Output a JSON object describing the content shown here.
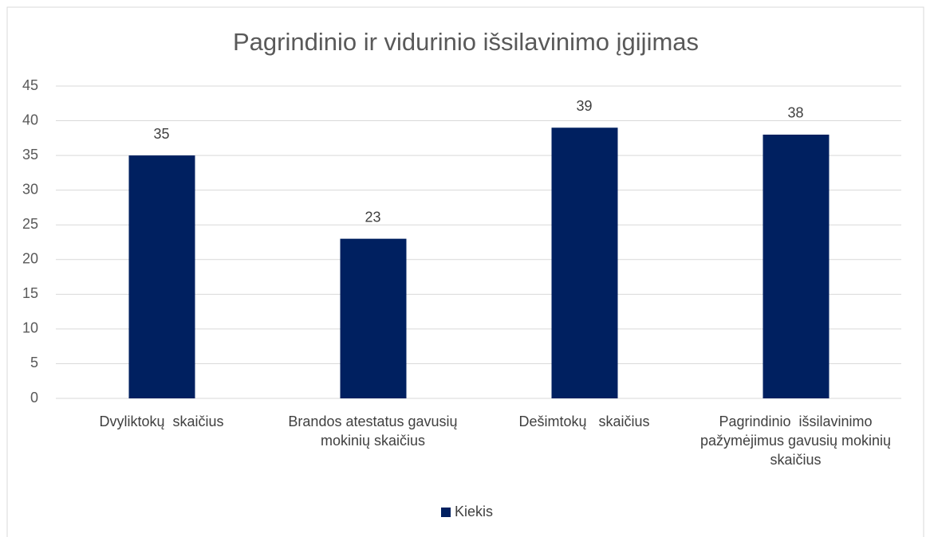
{
  "chart_data": {
    "type": "bar",
    "title": "Pagrindinio ir vidurinio išsilavinimo įgijimas",
    "categories": [
      "Dvyliktokų  skaičius",
      "Brandos atestatus gavusių mokinių skaičius",
      "Dešimtokų   skaičius",
      "Pagrindinio  išsilavinimo pažymėjimus gavusių mokinių skaičius"
    ],
    "series": [
      {
        "name": "Kiekis",
        "color": "#002060",
        "values": [
          35,
          23,
          39,
          38
        ]
      }
    ],
    "ylim": [
      0,
      45
    ],
    "yticks": [
      0,
      5,
      10,
      15,
      20,
      25,
      30,
      35,
      40,
      45
    ],
    "grid": true,
    "legend": "bottom"
  }
}
